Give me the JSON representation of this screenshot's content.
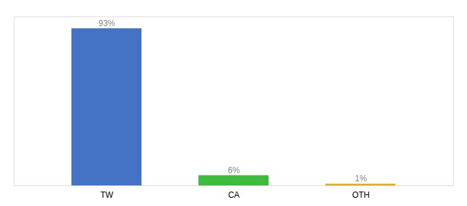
{
  "chart_data": {
    "type": "bar",
    "categories": [
      "TW",
      "CA",
      "OTH"
    ],
    "values": [
      93,
      6,
      1
    ],
    "value_labels": [
      "93%",
      "6%",
      "1%"
    ],
    "colors": [
      "#4472c4",
      "#3dbb3d",
      "#e6a817"
    ],
    "ylim": [
      0,
      100
    ],
    "data_labels": true,
    "tick_labels": "x"
  }
}
